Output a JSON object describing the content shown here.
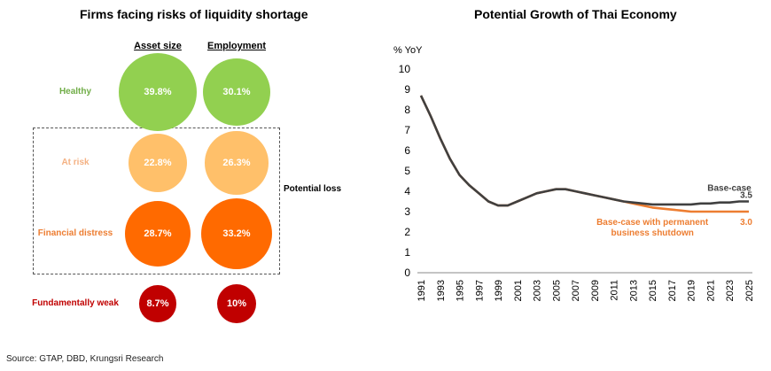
{
  "chart_data": [
    {
      "type": "bubble-table",
      "title": "Firms facing risks of liquidity shortage",
      "columns": [
        "Asset size",
        "Employment"
      ],
      "rows": [
        {
          "label": "Healthy",
          "color": "#92D050",
          "values": [
            "39.8%",
            "30.1%"
          ],
          "numeric": [
            39.8,
            30.1
          ]
        },
        {
          "label": "At risk",
          "color": "#FFC06A",
          "values": [
            "22.8%",
            "26.3%"
          ],
          "numeric": [
            22.8,
            26.3
          ]
        },
        {
          "label": "Financial distress",
          "color": "#FF6A00",
          "values": [
            "28.7%",
            "33.2%"
          ],
          "numeric": [
            28.7,
            33.2
          ]
        },
        {
          "label": "Fundamentally weak",
          "color": "#C00000",
          "values": [
            "8.7%",
            "10%"
          ],
          "numeric": [
            8.7,
            10
          ]
        }
      ],
      "group_label": "Potential loss"
    },
    {
      "type": "line",
      "title": "Potential Growth of Thai Economy",
      "ylabel": "% YoY",
      "ylim": [
        0,
        10
      ],
      "yticks": [
        0,
        1,
        2,
        3,
        4,
        5,
        6,
        7,
        8,
        9,
        10
      ],
      "xticks": [
        "1991",
        "1993",
        "1995",
        "1997",
        "1999",
        "2001",
        "2003",
        "2005",
        "2007",
        "2009",
        "2011",
        "2013",
        "2015",
        "2017",
        "2019",
        "2021",
        "2023",
        "2025"
      ],
      "x": [
        1991,
        1992,
        1993,
        1994,
        1995,
        1996,
        1997,
        1998,
        1999,
        2000,
        2001,
        2002,
        2003,
        2004,
        2005,
        2006,
        2007,
        2008,
        2009,
        2010,
        2011,
        2012,
        2013,
        2014,
        2015,
        2016,
        2017,
        2018,
        2019,
        2020,
        2021,
        2022,
        2023,
        2024,
        2025
      ],
      "series": [
        {
          "name": "Base-case",
          "color": "#404040",
          "end_label": "3.5",
          "values": [
            8.7,
            7.7,
            6.6,
            5.6,
            4.8,
            4.3,
            3.9,
            3.5,
            3.3,
            3.3,
            3.5,
            3.7,
            3.9,
            4.0,
            4.1,
            4.1,
            4.0,
            3.9,
            3.8,
            3.7,
            3.6,
            3.5,
            3.45,
            3.4,
            3.35,
            3.35,
            3.35,
            3.35,
            3.35,
            3.4,
            3.4,
            3.45,
            3.45,
            3.5,
            3.5
          ]
        },
        {
          "name": "Base-case with permanent business shutdown",
          "name_lines": [
            "Base-case with permanent",
            "business shutdown"
          ],
          "color": "#ED7D31",
          "end_label": "3.0",
          "values": [
            8.7,
            7.7,
            6.6,
            5.6,
            4.8,
            4.3,
            3.9,
            3.5,
            3.3,
            3.3,
            3.5,
            3.7,
            3.9,
            4.0,
            4.1,
            4.1,
            4.0,
            3.9,
            3.8,
            3.7,
            3.6,
            3.5,
            3.4,
            3.3,
            3.2,
            3.15,
            3.1,
            3.05,
            3.0,
            3.0,
            3.0,
            3.0,
            3.0,
            3.0,
            3.0
          ]
        }
      ]
    }
  ],
  "source": "Source: GTAP, DBD, Krungsri Research"
}
